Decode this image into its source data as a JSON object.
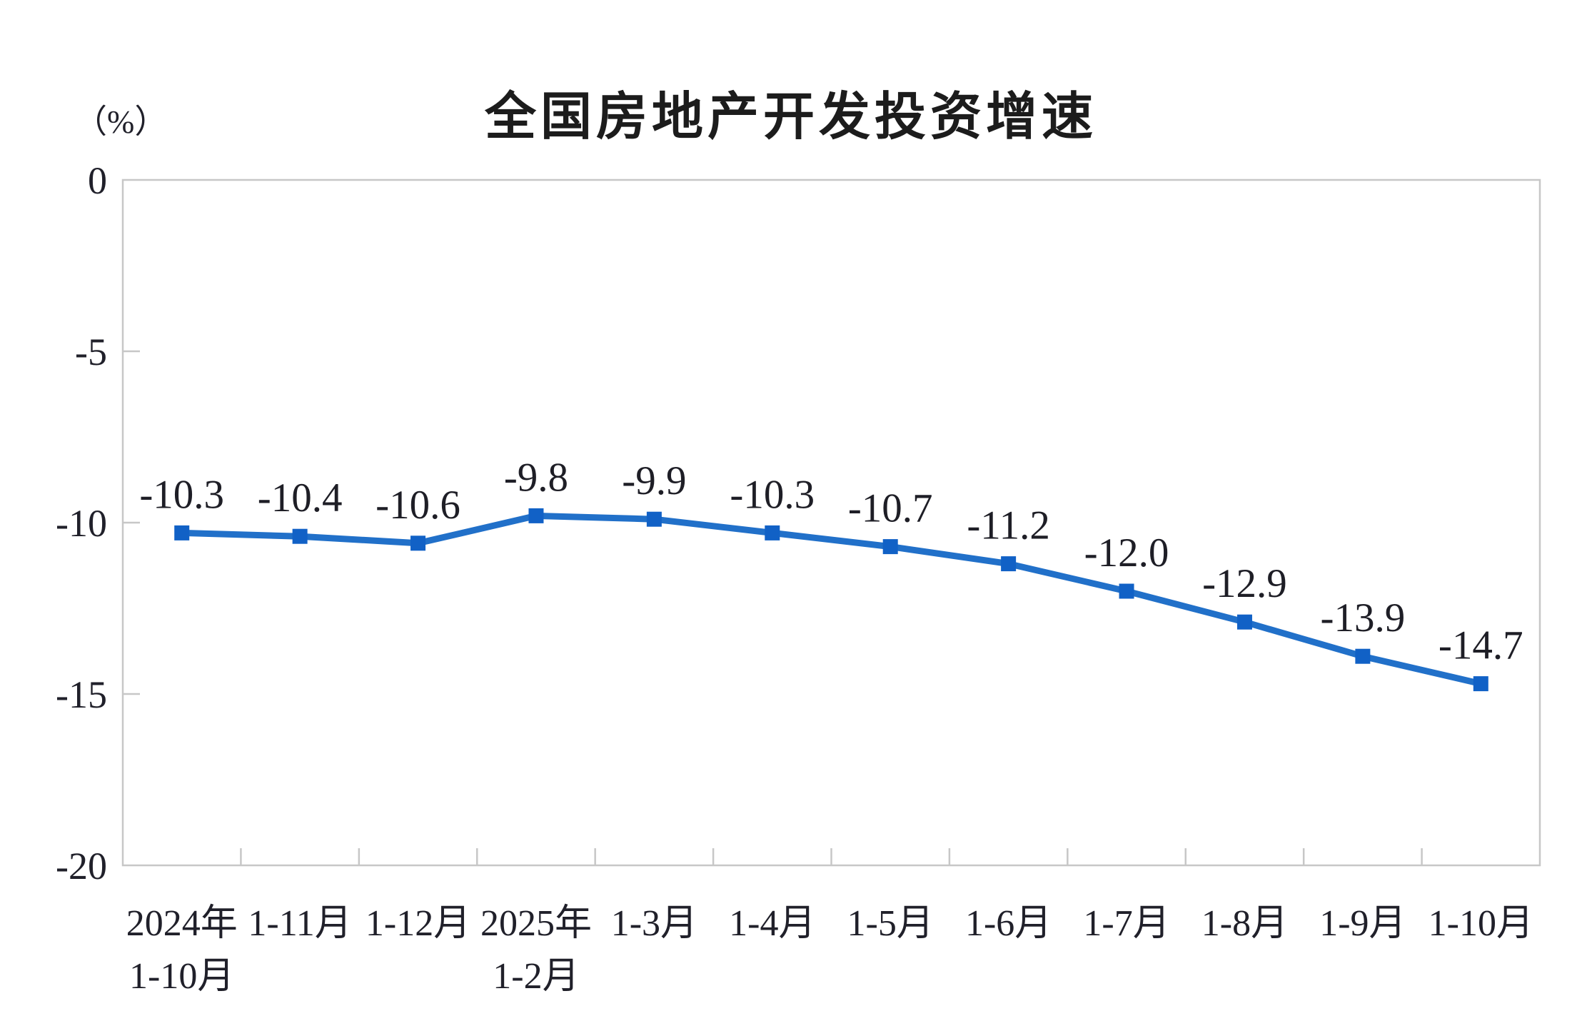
{
  "chart": {
    "title": "全国房地产开发投资增速",
    "unit_label": "（%）"
  },
  "chart_data": {
    "type": "line",
    "title": "全国房地产开发投资增速",
    "ylabel": "（%）",
    "xlabel": "",
    "categories": [
      [
        "2024年",
        "1-10月"
      ],
      [
        "1-11月"
      ],
      [
        "1-12月"
      ],
      [
        "2025年",
        "1-2月"
      ],
      [
        "1-3月"
      ],
      [
        "1-4月"
      ],
      [
        "1-5月"
      ],
      [
        "1-6月"
      ],
      [
        "1-7月"
      ],
      [
        "1-8月"
      ],
      [
        "1-9月"
      ],
      [
        "1-10月"
      ]
    ],
    "series": [
      {
        "name": "全国房地产开发投资增速",
        "values": [
          -10.3,
          -10.4,
          -10.6,
          -9.8,
          -9.9,
          -10.3,
          -10.7,
          -11.2,
          -12.0,
          -12.9,
          -13.9,
          -14.7
        ],
        "data_labels": [
          "-10.3",
          "-10.4",
          "-10.6",
          "-9.8",
          "-9.9",
          "-10.3",
          "-10.7",
          "-11.2",
          "-12.0",
          "-12.9",
          "-13.9",
          "-14.7"
        ]
      }
    ],
    "ylim": [
      -20,
      0
    ],
    "yticks": [
      0,
      -5,
      -10,
      -15,
      -20
    ],
    "ytick_labels": [
      "0",
      "-5",
      "-10",
      "-15",
      "-20"
    ],
    "grid": false,
    "legend_position": "none",
    "marker": "square",
    "colors": {
      "line": "#2170C9",
      "marker": "#1161C6",
      "axis": "#C7C7C7",
      "text": "#20202a",
      "title_text": "#1c1c1c",
      "background": "#ffffff"
    }
  }
}
